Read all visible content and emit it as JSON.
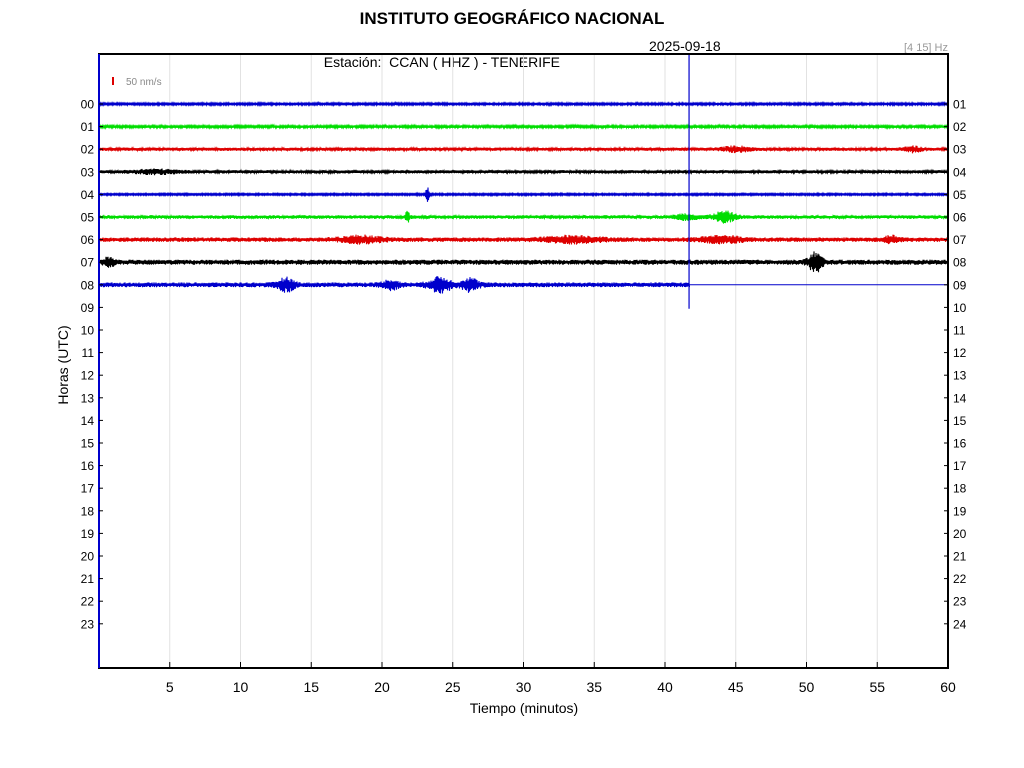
{
  "header": {
    "title": "INSTITUTO GEOGRÁFICO NACIONAL",
    "station_prefix": "Estación:",
    "station": "CCAN ( HHZ ) - TENERIFE",
    "date": "2025-09-18",
    "filter_band": "[4 15] Hz"
  },
  "chart_data": {
    "type": "line",
    "title": "INSTITUTO GEOGRÁFICO NACIONAL",
    "xlabel": "Tiempo (minutos)",
    "ylabel": "Horas (UTC)",
    "xlim": [
      0,
      60
    ],
    "x_ticks": [
      "5",
      "10",
      "15",
      "20",
      "25",
      "30",
      "35",
      "40",
      "45",
      "50",
      "55",
      "60"
    ],
    "y_ticks_left": [
      "00",
      "01",
      "02",
      "03",
      "04",
      "05",
      "06",
      "07",
      "08",
      "09",
      "10",
      "11",
      "12",
      "13",
      "14",
      "15",
      "16",
      "17",
      "18",
      "19",
      "20",
      "21",
      "22",
      "23"
    ],
    "y_ticks_right": [
      "01",
      "02",
      "03",
      "04",
      "05",
      "06",
      "07",
      "08",
      "09",
      "10",
      "11",
      "12",
      "13",
      "14",
      "15",
      "16",
      "17",
      "18",
      "19",
      "20",
      "21",
      "22",
      "23",
      "24"
    ],
    "scale_label": "50 nm/s",
    "grid": true,
    "current_time_minute": 41.7,
    "colors": [
      "#0000cc",
      "#00dd00",
      "#dd0000",
      "#000000"
    ],
    "traces": [
      {
        "hour": "00",
        "color": "#0000cc",
        "end_minute": 60,
        "noise": 1.0,
        "events": []
      },
      {
        "hour": "01",
        "color": "#00dd00",
        "end_minute": 60,
        "noise": 1.2,
        "events": []
      },
      {
        "hour": "02",
        "color": "#dd0000",
        "end_minute": 60,
        "noise": 1.6,
        "events": [
          {
            "t": 45,
            "a": 2.5,
            "w": 1.0
          },
          {
            "t": 57.5,
            "a": 2.5,
            "w": 0.6
          }
        ]
      },
      {
        "hour": "03",
        "color": "#000000",
        "end_minute": 60,
        "noise": 1.6,
        "events": [
          {
            "t": 4,
            "a": 2,
            "w": 1.5
          }
        ]
      },
      {
        "hour": "04",
        "color": "#0000cc",
        "end_minute": 60,
        "noise": 0.9,
        "events": [
          {
            "t": 23.2,
            "a": 7,
            "w": 0.15
          }
        ]
      },
      {
        "hour": "05",
        "color": "#00dd00",
        "end_minute": 60,
        "noise": 1.8,
        "events": [
          {
            "t": 21.8,
            "a": 6,
            "w": 0.15
          },
          {
            "t": 44.2,
            "a": 5,
            "w": 0.8
          },
          {
            "t": 41.5,
            "a": 2.5,
            "w": 0.8
          }
        ]
      },
      {
        "hour": "06",
        "color": "#dd0000",
        "end_minute": 60,
        "noise": 2.2,
        "events": [
          {
            "t": 18.5,
            "a": 3,
            "w": 1.5
          },
          {
            "t": 33.5,
            "a": 3,
            "w": 2
          },
          {
            "t": 44,
            "a": 3,
            "w": 1.5
          },
          {
            "t": 56,
            "a": 3,
            "w": 0.5
          }
        ]
      },
      {
        "hour": "07",
        "color": "#000000",
        "end_minute": 60,
        "noise": 2.5,
        "events": [
          {
            "t": 50.6,
            "a": 9,
            "w": 0.5
          },
          {
            "t": 0.7,
            "a": 4,
            "w": 0.4
          }
        ]
      },
      {
        "hour": "08",
        "color": "#0000cc",
        "end_minute": 41.7,
        "noise": 2.4,
        "events": [
          {
            "t": 13.2,
            "a": 6,
            "w": 0.6
          },
          {
            "t": 24.1,
            "a": 7,
            "w": 0.8
          },
          {
            "t": 26.2,
            "a": 6,
            "w": 0.6
          },
          {
            "t": 20.6,
            "a": 4,
            "w": 0.6
          }
        ]
      }
    ]
  }
}
